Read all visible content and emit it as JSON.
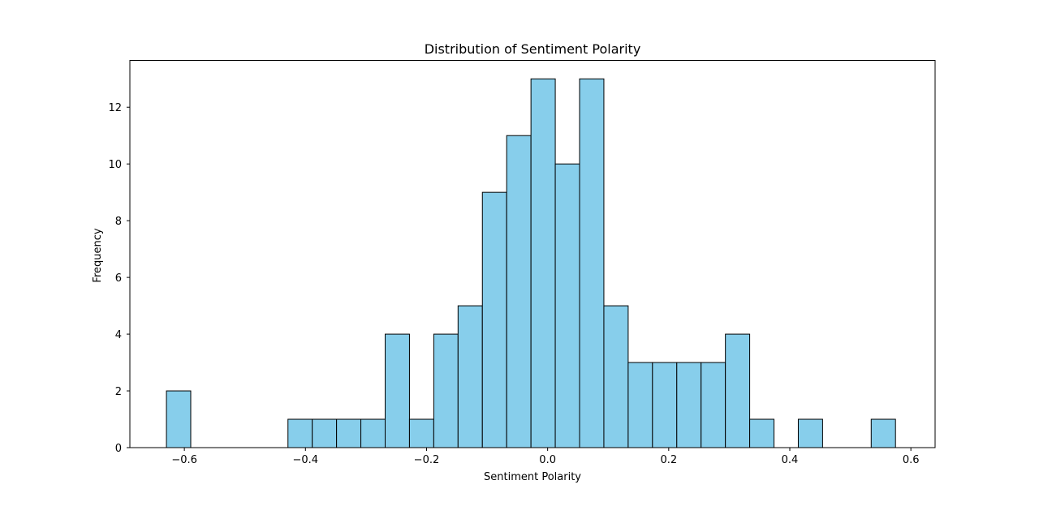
{
  "chart_data": {
    "type": "bar",
    "title": "Distribution of Sentiment Polarity",
    "xlabel": "Sentiment Polarity",
    "ylabel": "Frequency",
    "xlim": [
      -0.69,
      0.64
    ],
    "ylim": [
      0,
      13.65
    ],
    "xticks": [
      -0.6,
      -0.4,
      -0.2,
      0.0,
      0.2,
      0.4,
      0.6
    ],
    "xtick_labels": [
      "−0.6",
      "−0.4",
      "−0.2",
      "0.0",
      "0.2",
      "0.4",
      "0.6"
    ],
    "yticks": [
      0,
      2,
      4,
      6,
      8,
      10,
      12
    ],
    "ytick_labels": [
      "0",
      "2",
      "4",
      "6",
      "8",
      "10",
      "12"
    ],
    "bin_start": -0.6296,
    "bin_width": 0.04014,
    "counts": [
      2,
      0,
      0,
      0,
      0,
      1,
      1,
      1,
      1,
      4,
      1,
      4,
      5,
      9,
      11,
      13,
      10,
      13,
      5,
      3,
      3,
      3,
      3,
      4,
      1,
      0,
      1,
      0,
      0,
      1
    ],
    "grid": false,
    "legend": "none",
    "bar_color": "#87ceeb",
    "edge_color": "#000000"
  }
}
